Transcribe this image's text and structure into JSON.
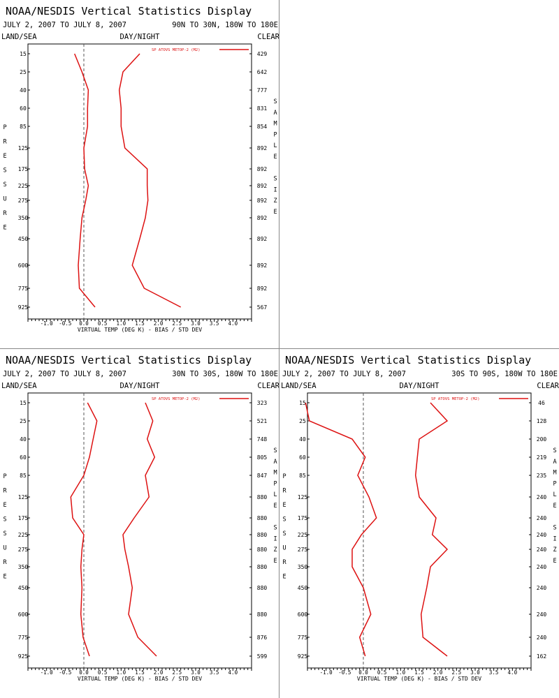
{
  "colors": {
    "series": "#dd1111",
    "axis": "#000000",
    "zero_line": "#555555",
    "divider": "#888888"
  },
  "chart_data": [
    {
      "type": "line",
      "title": "NOAA/NESDIS Vertical Statistics Display",
      "date_range": "JULY 2, 2007 TO JULY 8, 2007",
      "region": "90N TO 30N, 180W TO 180E",
      "left_label": "LAND/SEA",
      "center_label": "DAY/NIGHT",
      "right_label": "CLEAR",
      "legend": "SP ATOVS METOP-2 (M2)",
      "ylabel": "PRESSURE",
      "ylabel2": "SAMPLE SIZE",
      "xlabel": "VIRTUAL TEMP (DEG K) - BIAS / STD DEV",
      "xlim": [
        -1.5,
        4.5
      ],
      "xticks": [
        "-1.0",
        "-0.5",
        "0.0",
        "0.5",
        "1.0",
        "1.5",
        "2.0",
        "2.5",
        "3.0",
        "3.5",
        "4.0"
      ],
      "levels": [
        "15",
        "25",
        "40",
        "60",
        "85",
        "125",
        "175",
        "225",
        "275",
        "350",
        "450",
        "600",
        "775",
        "925"
      ],
      "sample_size": [
        "429",
        "642",
        "777",
        "831",
        "854",
        "892",
        "892",
        "892",
        "892",
        "892",
        "892",
        "892",
        "892",
        "567"
      ],
      "series": [
        {
          "name": "BIAS",
          "values": [
            -0.25,
            -0.05,
            0.12,
            0.1,
            0.1,
            0.0,
            0.02,
            0.12,
            0.05,
            -0.05,
            -0.1,
            -0.15,
            -0.12,
            0.3
          ]
        },
        {
          "name": "STD DEV",
          "values": [
            1.5,
            1.05,
            0.95,
            1.0,
            1.0,
            1.1,
            1.7,
            1.7,
            1.72,
            1.65,
            1.5,
            1.3,
            1.62,
            2.6
          ]
        }
      ]
    },
    {
      "type": "line",
      "title": "NOAA/NESDIS Vertical Statistics Display",
      "date_range": "JULY 2, 2007 TO JULY 8, 2007",
      "region": "30N TO 30S, 180W TO 180E",
      "left_label": "LAND/SEA",
      "center_label": "DAY/NIGHT",
      "right_label": "CLEAR",
      "legend": "SP ATOVS METOP-2 (M2)",
      "ylabel": "PRESSURE",
      "ylabel2": "SAMPLE SIZE",
      "xlabel": "VIRTUAL TEMP (DEG K) - BIAS / STD DEV",
      "xlim": [
        -1.5,
        4.5
      ],
      "xticks": [
        "-1.0",
        "-0.5",
        "0.0",
        "0.5",
        "1.0",
        "1.5",
        "2.0",
        "2.5",
        "3.0",
        "3.5",
        "4.0"
      ],
      "levels": [
        "15",
        "25",
        "40",
        "60",
        "85",
        "125",
        "175",
        "225",
        "275",
        "350",
        "450",
        "600",
        "775",
        "925"
      ],
      "sample_size": [
        "323",
        "521",
        "748",
        "805",
        "847",
        "880",
        "880",
        "880",
        "880",
        "880",
        "880",
        "880",
        "876",
        "599"
      ],
      "series": [
        {
          "name": "BIAS",
          "values": [
            0.1,
            0.35,
            0.25,
            0.15,
            0.0,
            -0.35,
            -0.3,
            0.0,
            -0.05,
            -0.08,
            -0.05,
            -0.08,
            -0.02,
            0.15
          ]
        },
        {
          "name": "STD DEV",
          "values": [
            1.65,
            1.85,
            1.7,
            1.9,
            1.65,
            1.75,
            1.35,
            1.05,
            1.1,
            1.2,
            1.3,
            1.2,
            1.45,
            1.95
          ]
        }
      ]
    },
    {
      "type": "line",
      "title": "NOAA/NESDIS Vertical Statistics Display",
      "date_range": "JULY 2, 2007 TO JULY 8, 2007",
      "region": "30S TO 90S, 180W TO 180E",
      "left_label": "LAND/SEA",
      "center_label": "DAY/NIGHT",
      "right_label": "CLEAR",
      "legend": "SP ATOVS METOP-2 (M2)",
      "ylabel": "PRESSURE",
      "ylabel2": "SAMPLE SIZE",
      "xlabel": "VIRTUAL TEMP (DEG K) - BIAS / STD DEV",
      "xlim": [
        -1.5,
        4.5
      ],
      "xticks": [
        "-1.0",
        "-0.5",
        "0.0",
        "0.5",
        "1.0",
        "1.5",
        "2.0",
        "2.5",
        "3.0",
        "3.5",
        "4.0"
      ],
      "levels": [
        "15",
        "25",
        "40",
        "60",
        "85",
        "125",
        "175",
        "225",
        "275",
        "350",
        "450",
        "600",
        "775",
        "925"
      ],
      "sample_size": [
        "46",
        "128",
        "200",
        "219",
        "235",
        "240",
        "240",
        "240",
        "240",
        "240",
        "240",
        "240",
        "240",
        "162"
      ],
      "series": [
        {
          "name": "BIAS",
          "values": [
            -1.55,
            -1.45,
            -0.3,
            0.05,
            -0.15,
            0.15,
            0.35,
            -0.05,
            -0.3,
            -0.3,
            0.0,
            0.2,
            -0.1,
            0.05
          ]
        },
        {
          "name": "STD DEV",
          "values": [
            1.8,
            2.25,
            1.5,
            1.45,
            1.4,
            1.5,
            1.95,
            1.85,
            2.25,
            1.8,
            1.7,
            1.55,
            1.6,
            2.25
          ]
        }
      ]
    }
  ]
}
